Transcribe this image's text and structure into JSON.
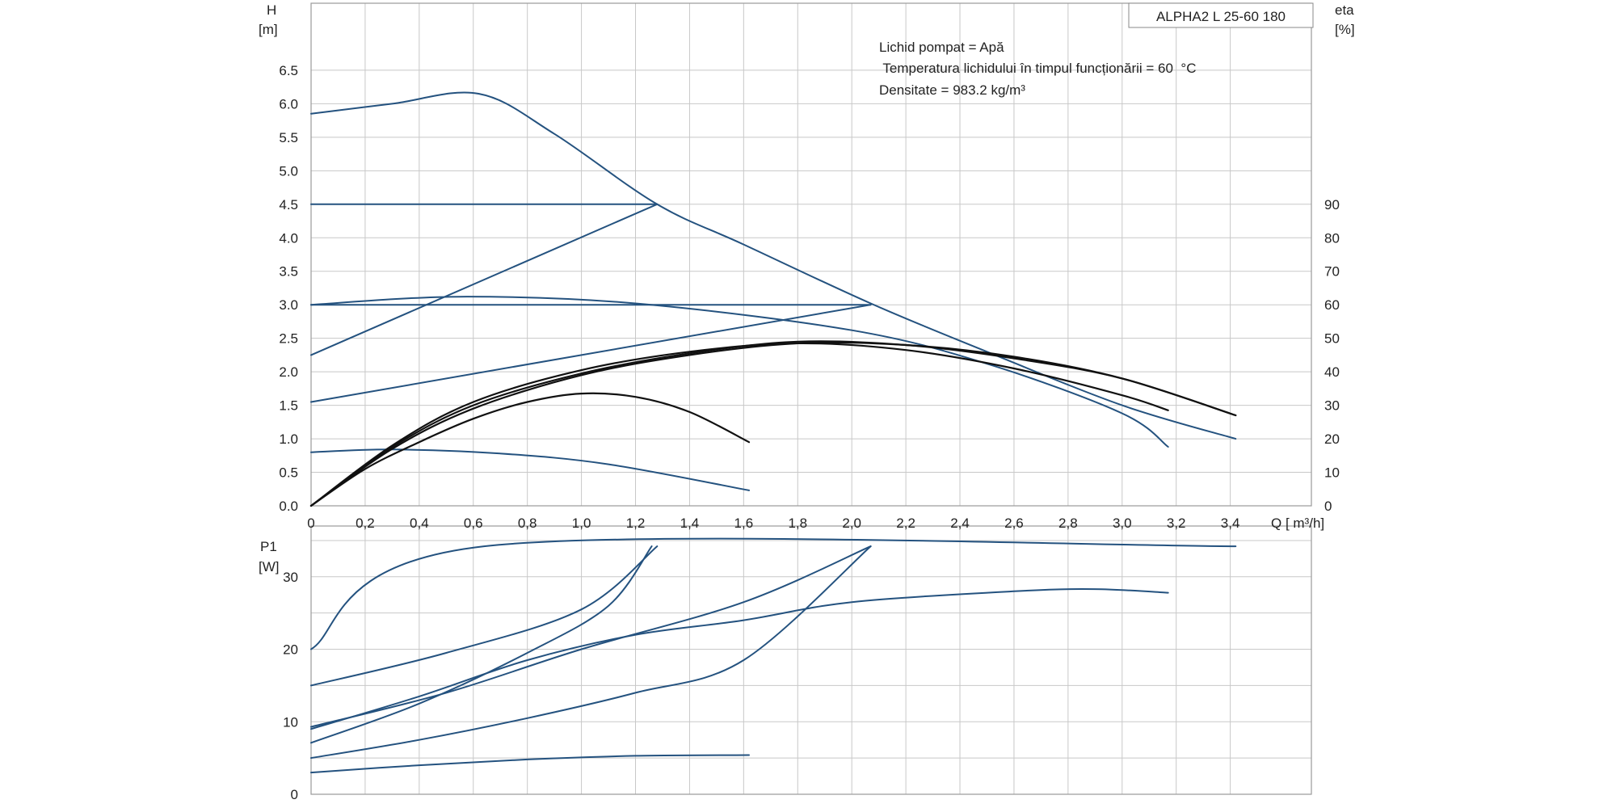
{
  "title": "ALPHA2 L 25-60 180",
  "annotations": [
    "Lichid pompat = Apă",
    " Temperatura lichidului în timpul funcționării = 60  °C",
    "Densitate = 983.2  kg/m³"
  ],
  "colors": {
    "curve": "#24527f",
    "efficiency": "#111111",
    "grid": "#c8c8c8",
    "frame": "#9a9a9a"
  },
  "chart_data": [
    {
      "type": "line",
      "name": "head",
      "x_axis": {
        "label": "Q [ m³/h]",
        "range": [
          0,
          3.7
        ],
        "ticks": [
          "0",
          "0,2",
          "0,4",
          "0,6",
          "0,8",
          "1,0",
          "1,2",
          "1,4",
          "1,6",
          "1,8",
          "2,0",
          "2,2",
          "2,4",
          "2,6",
          "2,8",
          "3,0",
          "3,2",
          "3,4"
        ]
      },
      "y_axis_left": {
        "label_line1": "H",
        "label_line2": "[m]",
        "range": [
          0,
          7.5
        ],
        "ticks": [
          "0.0",
          "0.5",
          "1.0",
          "1.5",
          "2.0",
          "2.5",
          "3.0",
          "3.5",
          "4.0",
          "4.5",
          "5.0",
          "5.5",
          "6.0",
          "6.5"
        ]
      },
      "y_axis_right": {
        "label_line1": "eta",
        "label_line2": "[%]",
        "range": [
          0,
          150
        ],
        "ticks": [
          "0",
          "10",
          "20",
          "30",
          "40",
          "50",
          "60",
          "70",
          "80",
          "90"
        ]
      },
      "grid": true,
      "series": [
        {
          "kind": "head",
          "points": [
            [
              0,
              5.85
            ],
            [
              0.3,
              6.0
            ],
            [
              0.62,
              6.15
            ],
            [
              0.9,
              5.55
            ],
            [
              1.28,
              4.5
            ],
            [
              1.6,
              3.9
            ],
            [
              2.07,
              3.02
            ],
            [
              2.5,
              2.3
            ],
            [
              3.0,
              1.5
            ],
            [
              3.42,
              1.0
            ]
          ]
        },
        {
          "kind": "head",
          "points": [
            [
              0,
              4.5
            ],
            [
              1.28,
              4.5
            ]
          ]
        },
        {
          "kind": "head",
          "points": [
            [
              0,
              2.25
            ],
            [
              1.28,
              4.5
            ]
          ]
        },
        {
          "kind": "head",
          "points": [
            [
              0,
              3.0
            ],
            [
              2.07,
              3.0
            ]
          ]
        },
        {
          "kind": "head",
          "points": [
            [
              0,
              1.55
            ],
            [
              2.07,
              3.0
            ]
          ]
        },
        {
          "kind": "head",
          "points": [
            [
              0,
              3.0
            ],
            [
              0.55,
              3.12
            ],
            [
              1.2,
              3.02
            ],
            [
              2.0,
              2.62
            ],
            [
              2.5,
              2.12
            ],
            [
              3.0,
              1.38
            ],
            [
              3.17,
              0.88
            ]
          ]
        },
        {
          "kind": "head",
          "points": [
            [
              0,
              0.8
            ],
            [
              0.3,
              0.84
            ],
            [
              0.7,
              0.78
            ],
            [
              1.1,
              0.62
            ],
            [
              1.62,
              0.23
            ]
          ]
        },
        {
          "kind": "eta",
          "points": [
            [
              0,
              0
            ],
            [
              0.2,
              11
            ],
            [
              0.4,
              19
            ],
            [
              0.6,
              26
            ],
            [
              0.8,
              31
            ],
            [
              1.0,
              33.5
            ],
            [
              1.2,
              32.5
            ],
            [
              1.4,
              28
            ],
            [
              1.62,
              19
            ]
          ]
        },
        {
          "kind": "eta",
          "points": [
            [
              0,
              0
            ],
            [
              0.3,
              17
            ],
            [
              0.6,
              29
            ],
            [
              1.0,
              39
            ],
            [
              1.4,
              45
            ],
            [
              1.8,
              48.5
            ],
            [
              2.2,
              48
            ],
            [
              2.6,
              44.5
            ],
            [
              3.0,
              38
            ],
            [
              3.42,
              27
            ]
          ]
        },
        {
          "kind": "eta",
          "points": [
            [
              0,
              0
            ],
            [
              0.3,
              17.5
            ],
            [
              0.6,
              30
            ],
            [
              1.0,
              39.5
            ],
            [
              1.4,
              45.5
            ],
            [
              1.8,
              49
            ],
            [
              2.2,
              48
            ],
            [
              2.6,
              44
            ],
            [
              3.0,
              38
            ],
            [
              3.42,
              27
            ]
          ]
        },
        {
          "kind": "eta",
          "points": [
            [
              0,
              0
            ],
            [
              0.3,
              18
            ],
            [
              0.6,
              31
            ],
            [
              1.0,
              40.5
            ],
            [
              1.4,
              46
            ],
            [
              1.8,
              48.5
            ],
            [
              2.2,
              46.5
            ],
            [
              2.6,
              41
            ],
            [
              3.0,
              33
            ],
            [
              3.17,
              28.5
            ]
          ]
        }
      ]
    },
    {
      "type": "line",
      "name": "power",
      "x_axis": {
        "range": [
          0,
          3.7
        ]
      },
      "y_axis_left": {
        "label_line1": "P1",
        "label_line2": "[W]",
        "range": [
          0,
          37
        ],
        "ticks": [
          "0",
          "10",
          "20",
          "30"
        ]
      },
      "grid": true,
      "series": [
        {
          "points": [
            [
              0,
              20
            ],
            [
              0.64,
              34.2
            ],
            [
              3.42,
              34.2
            ]
          ]
        },
        {
          "points": [
            [
              0,
              15
            ],
            [
              0.5,
              19.5
            ],
            [
              1.0,
              25.5
            ],
            [
              1.28,
              34.2
            ]
          ]
        },
        {
          "points": [
            [
              0,
              9.3
            ],
            [
              0.5,
              14
            ],
            [
              1.0,
              20
            ],
            [
              1.6,
              26.5
            ],
            [
              2.07,
              34.2
            ]
          ]
        },
        {
          "points": [
            [
              0,
              7.1
            ],
            [
              0.4,
              12.5
            ],
            [
              0.8,
              19.5
            ],
            [
              1.1,
              26
            ],
            [
              1.26,
              34.2
            ]
          ]
        },
        {
          "points": [
            [
              0,
              9.0
            ],
            [
              0.4,
              13.5
            ],
            [
              0.8,
              18.5
            ],
            [
              1.2,
              22
            ],
            [
              1.6,
              24
            ],
            [
              2.0,
              26.5
            ],
            [
              2.6,
              28
            ],
            [
              2.9,
              28.3
            ],
            [
              3.17,
              27.8
            ]
          ]
        },
        {
          "points": [
            [
              0,
              5.0
            ],
            [
              0.4,
              7.5
            ],
            [
              0.8,
              10.5
            ],
            [
              1.2,
              14
            ],
            [
              1.6,
              18.5
            ],
            [
              2.07,
              34.2
            ]
          ]
        },
        {
          "points": [
            [
              0,
              3.0
            ],
            [
              0.4,
              4.0
            ],
            [
              0.8,
              4.8
            ],
            [
              1.2,
              5.3
            ],
            [
              1.62,
              5.4
            ]
          ]
        }
      ]
    }
  ]
}
